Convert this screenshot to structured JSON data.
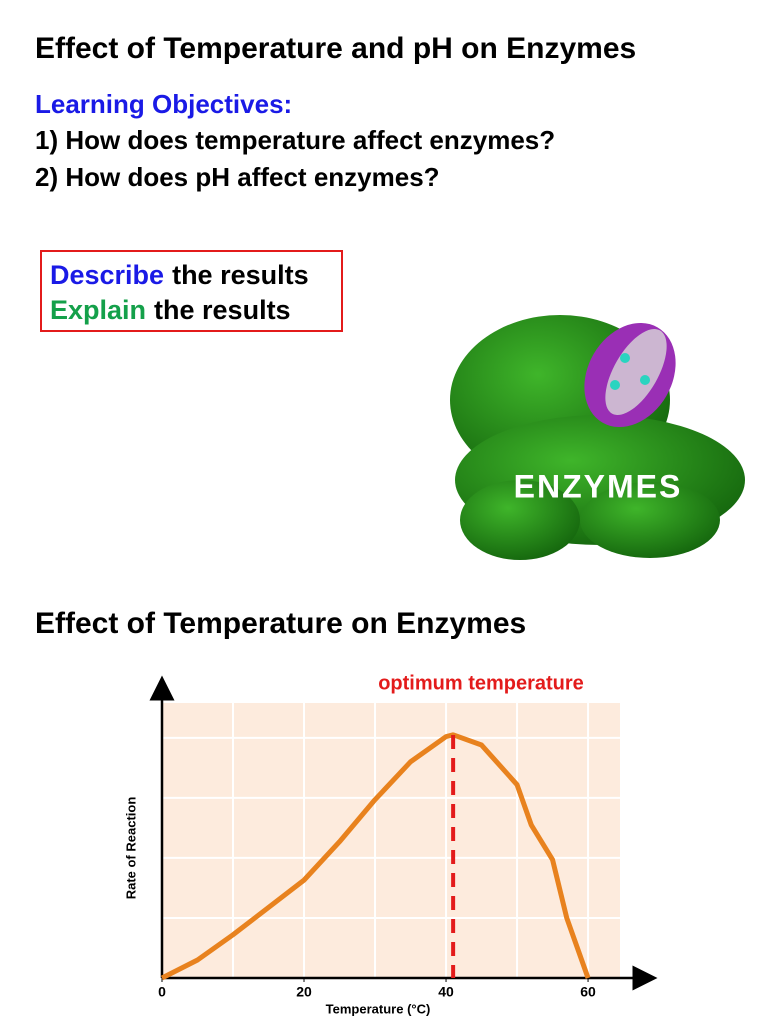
{
  "title": "Effect of Temperature and pH on Enzymes",
  "objectives": {
    "heading": "Learning Objectives:",
    "items": [
      "1) How does temperature affect enzymes?",
      "2) How does pH affect enzymes?"
    ]
  },
  "task_box": [
    {
      "verb": "Describe",
      "rest": "the results"
    },
    {
      "verb": "Explain",
      "rest": "the results"
    }
  ],
  "image_label": "ENZYMES",
  "section_title": "Effect of Temperature on Enzymes",
  "chart_data": {
    "type": "line",
    "x_label": "Temperature (°C)",
    "y_label": "Rate of Reaction",
    "annotation": "optimum temperature",
    "optimum_x": 41,
    "xlim": [
      0,
      64.5
    ],
    "ylim": [
      0,
      4.58
    ],
    "xticks": [
      0,
      20,
      40,
      60
    ],
    "xgrid": [
      10,
      20,
      30,
      40,
      50,
      60
    ],
    "ygrid": [
      1,
      2,
      3,
      4
    ],
    "series": [
      {
        "name": "Rate of Reaction",
        "color": "#e8821e",
        "x": [
          0,
          5,
          10,
          20,
          25,
          30,
          35,
          40,
          41,
          45,
          50,
          52,
          55,
          57,
          60
        ],
        "values": [
          0,
          0.3,
          0.72,
          1.63,
          2.27,
          2.97,
          3.6,
          4.02,
          4.05,
          3.88,
          3.22,
          2.55,
          1.97,
          1.0,
          0
        ]
      }
    ]
  }
}
